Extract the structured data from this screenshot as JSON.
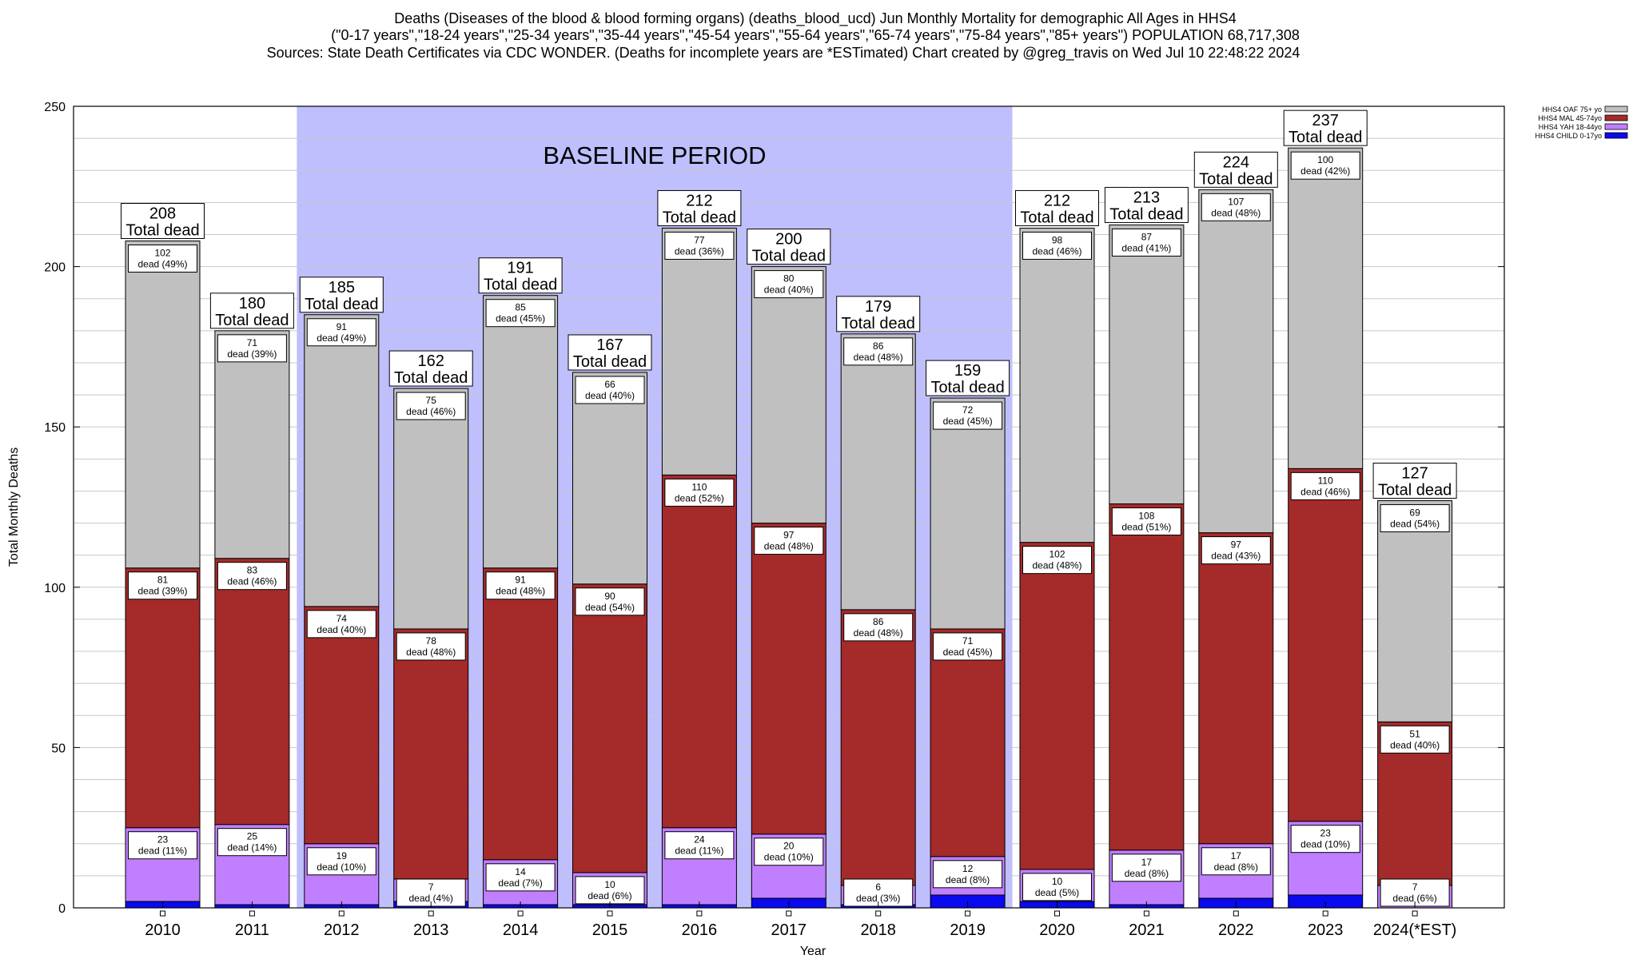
{
  "chart_data": {
    "type": "bar",
    "stacked": true,
    "title_lines": [
      "Deaths (Diseases of the blood & blood forming organs) (deaths_blood_ucd) Jun Monthly Mortality for demographic All Ages in HHS4",
      "(\"0-17 years\",\"18-24 years\",\"25-34 years\",\"35-44 years\",\"45-54 years\",\"55-64 years\",\"65-74 years\",\"75-84 years\",\"85+ years\") POPULATION 68,717,308",
      "Sources: State Death Certificates via CDC WONDER. (Deaths for incomplete years are *ESTimated)                Chart created by @greg_travis on Wed Jul 10 22:48:22 2024"
    ],
    "xlabel": "Year",
    "ylabel": "Total Monthly Deaths",
    "ylim": [
      0,
      250
    ],
    "yticks": [
      0,
      50,
      100,
      150,
      200,
      250
    ],
    "grid": true,
    "legend_position": "top-right",
    "categories": [
      "2010",
      "2011",
      "2012",
      "2013",
      "2014",
      "2015",
      "2016",
      "2017",
      "2018",
      "2019",
      "2020",
      "2021",
      "2022",
      "2023",
      "2024(*EST)"
    ],
    "series": [
      {
        "name": "HHS4 CHILD 0-17yo",
        "color": "#0a0aee",
        "values": [
          2,
          1,
          1,
          2,
          1,
          1,
          1,
          3,
          1,
          4,
          2,
          1,
          3,
          4,
          0
        ]
      },
      {
        "name": "HHS4 YAH 18-44yo",
        "color": "#bf7fff",
        "values": [
          23,
          25,
          19,
          7,
          14,
          10,
          24,
          20,
          6,
          12,
          10,
          17,
          17,
          23,
          7
        ]
      },
      {
        "name": "HHS4 MAL 45-74yo",
        "color": "#a52a2a",
        "values": [
          81,
          83,
          74,
          78,
          91,
          90,
          110,
          97,
          86,
          71,
          102,
          108,
          97,
          110,
          51
        ]
      },
      {
        "name": "HHS4 OAF 75+ yo",
        "color": "#c0c0c0",
        "values": [
          102,
          71,
          91,
          75,
          85,
          66,
          77,
          80,
          86,
          72,
          98,
          87,
          107,
          100,
          69
        ]
      }
    ],
    "totals": [
      208,
      180,
      185,
      162,
      191,
      167,
      212,
      200,
      179,
      159,
      212,
      213,
      224,
      237,
      127
    ],
    "total_suffix": "Total dead",
    "segment_labels": {
      "HHS4 YAH 18-44yo": [
        "dead (11%)",
        "dead (14%)",
        "dead (10%)",
        "dead (4%)",
        "dead (7%)",
        "dead (6%)",
        "dead (11%)",
        "dead (10%)",
        "dead (3%)",
        "dead (8%)",
        "dead (5%)",
        "dead (8%)",
        "dead (8%)",
        "dead (10%)",
        "dead (6%)"
      ],
      "HHS4 MAL 45-74yo": [
        "dead (39%)",
        "dead (46%)",
        "dead (40%)",
        "dead (48%)",
        "dead (48%)",
        "dead (54%)",
        "dead (52%)",
        "dead (48%)",
        "dead (48%)",
        "dead (45%)",
        "dead (48%)",
        "dead (51%)",
        "dead (43%)",
        "dead (46%)",
        "dead (40%)"
      ],
      "HHS4 OAF 75+ yo": [
        "dead (49%)",
        "dead (39%)",
        "dead (49%)",
        "dead (46%)",
        "dead (45%)",
        "dead (40%)",
        "dead (36%)",
        "dead (40%)",
        "dead (48%)",
        "dead (45%)",
        "dead (46%)",
        "dead (41%)",
        "dead (48%)",
        "dead (42%)",
        "dead (54%)"
      ]
    },
    "baseline": {
      "label": "BASELINE PERIOD",
      "start": "2012",
      "end": "2019",
      "color": "#bfbffe"
    }
  }
}
